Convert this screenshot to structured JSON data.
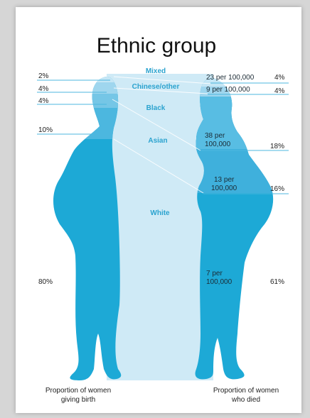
{
  "title": "Ethnic group",
  "left_labels": {
    "mixed": "2%",
    "chinese_other": "4%",
    "black": "4%",
    "asian": "10%",
    "white": "80%"
  },
  "categories": {
    "mixed": "Mixed",
    "chinese_other": "Chinese/other",
    "black": "Black",
    "asian": "Asian",
    "white": "White"
  },
  "right_labels": {
    "mixed": "4%",
    "chinese_other": "4%",
    "asian": "18%",
    "black": "16%",
    "white": "61%"
  },
  "death_rates": {
    "mixed": "23 per 100,000",
    "chinese_other": "9 per 100,000",
    "asian_line1": "38 per",
    "asian_line2": "100,000",
    "black_line1": "13 per",
    "black_line2": "100,000",
    "white_line1": "7 per",
    "white_line2": "100,000"
  },
  "footer": {
    "left_line1": "Proportion of women",
    "left_line2": "giving birth",
    "right_line1": "Proportion of women",
    "right_line2": "who died"
  },
  "colors": {
    "white_band": "#1da9d6",
    "asian_band": "#4cb7df",
    "black_band": "#75c6e6",
    "chinese_band": "#9fd6ee",
    "mixed_band": "#c5e6f5",
    "center_fill": "#cfeaf6",
    "category_text": "#2ba3cf"
  }
}
